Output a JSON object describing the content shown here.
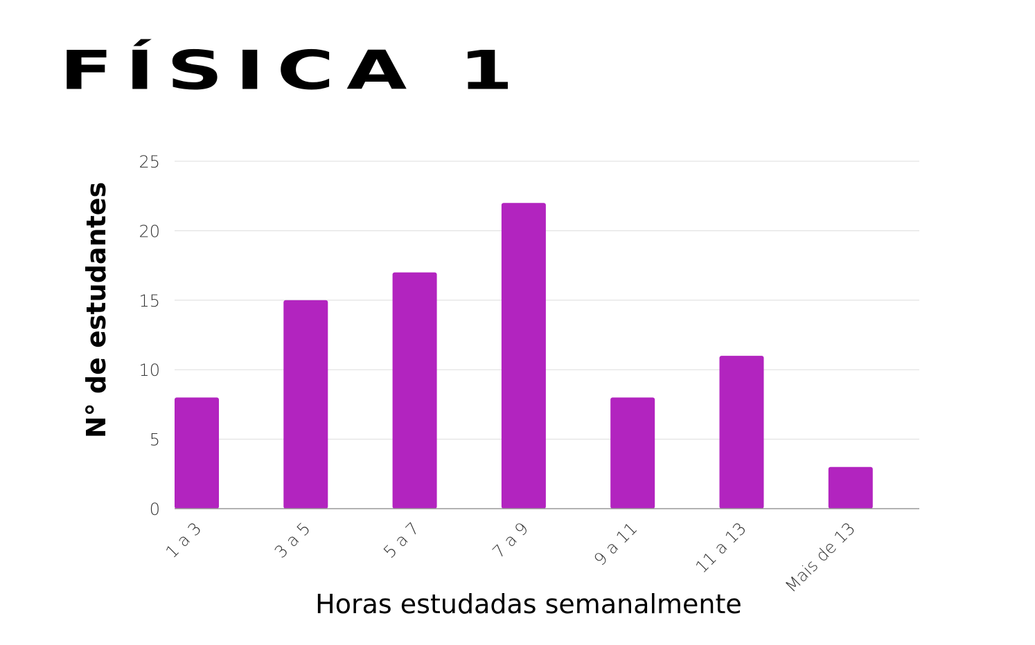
{
  "title": "FÍSICA 1",
  "chart_data": {
    "type": "bar",
    "categories": [
      "1 a 3",
      "3 a 5",
      "5 a 7",
      "7 a 9",
      "9 a 11",
      "11 a 13",
      "Mais de 13"
    ],
    "values": [
      8,
      15,
      17,
      22,
      8,
      11,
      3
    ],
    "xlabel": "Horas estudadas semanalmente",
    "ylabel": "N° de estudantes",
    "ylim": [
      0,
      25
    ],
    "yticks": [
      0,
      5,
      10,
      15,
      20,
      25
    ],
    "grid": true,
    "legend": "none",
    "bar_color": "#b224bf",
    "grid_color": "#dddddd",
    "axis_color": "#999999"
  }
}
